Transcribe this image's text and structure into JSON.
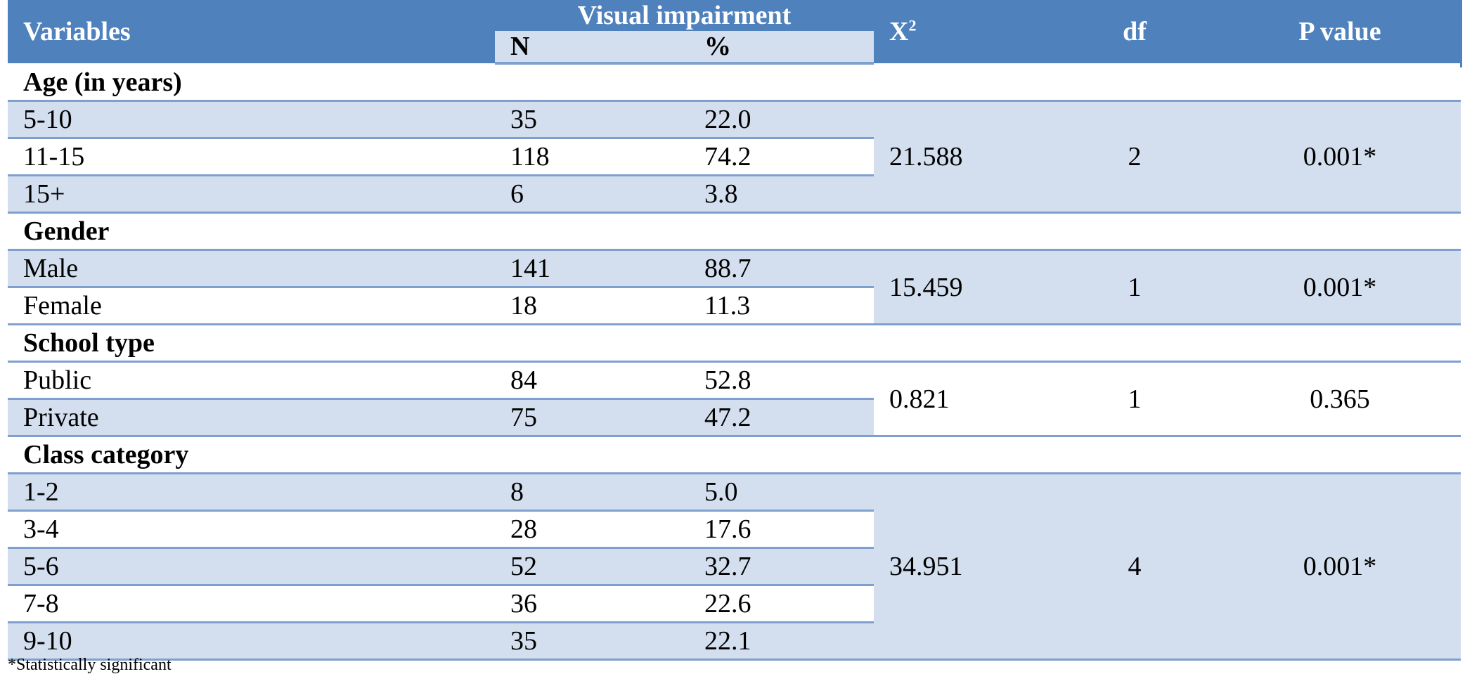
{
  "header": {
    "variables": "Variables",
    "visual_impairment": "Visual impairment",
    "n": "N",
    "percent": "%",
    "chi_square": {
      "symbol": "X",
      "superscript": "2"
    },
    "df": "df",
    "p_value": "P value"
  },
  "groups": [
    {
      "name": "Age (in years)",
      "rows": [
        [
          "5-10",
          "35",
          "22.0"
        ],
        [
          "11-15",
          "118",
          "74.2"
        ],
        [
          "15+",
          "6",
          "3.8"
        ]
      ],
      "chi_square": "21.588",
      "df": "2",
      "p_value": "0.001*"
    },
    {
      "name": "Gender",
      "rows": [
        [
          "Male",
          "141",
          "88.7"
        ],
        [
          "Female",
          "18",
          "11.3"
        ]
      ],
      "chi_square": "15.459",
      "df": "1",
      "p_value": "0.001*"
    },
    {
      "name": "School type",
      "rows": [
        [
          "Public",
          "84",
          "52.8"
        ],
        [
          "Private",
          "75",
          "47.2"
        ]
      ],
      "chi_square": "0.821",
      "df": "1",
      "p_value": "0.365"
    },
    {
      "name": "Class category",
      "rows": [
        [
          "1-2",
          "8",
          "5.0"
        ],
        [
          "3-4",
          "28",
          "17.6"
        ],
        [
          "5-6",
          "52",
          "32.7"
        ],
        [
          "7-8",
          "36",
          "22.6"
        ],
        [
          "9-10",
          "35",
          "22.1"
        ]
      ],
      "chi_square": "34.951",
      "df": "4",
      "p_value": "0.001*"
    }
  ],
  "footnote": "*Statistically significant"
}
